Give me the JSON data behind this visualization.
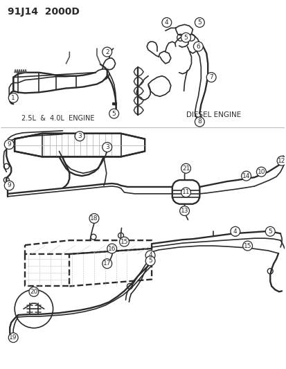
{
  "title": "91J14  2000D",
  "bg_color": "#ffffff",
  "lc": "#2a2a2a",
  "fig_width": 4.14,
  "fig_height": 5.33,
  "dpi": 100,
  "sub_left": "2.5L  &  4.0L  ENGINE",
  "sub_right": "DIESEL ENGINE"
}
